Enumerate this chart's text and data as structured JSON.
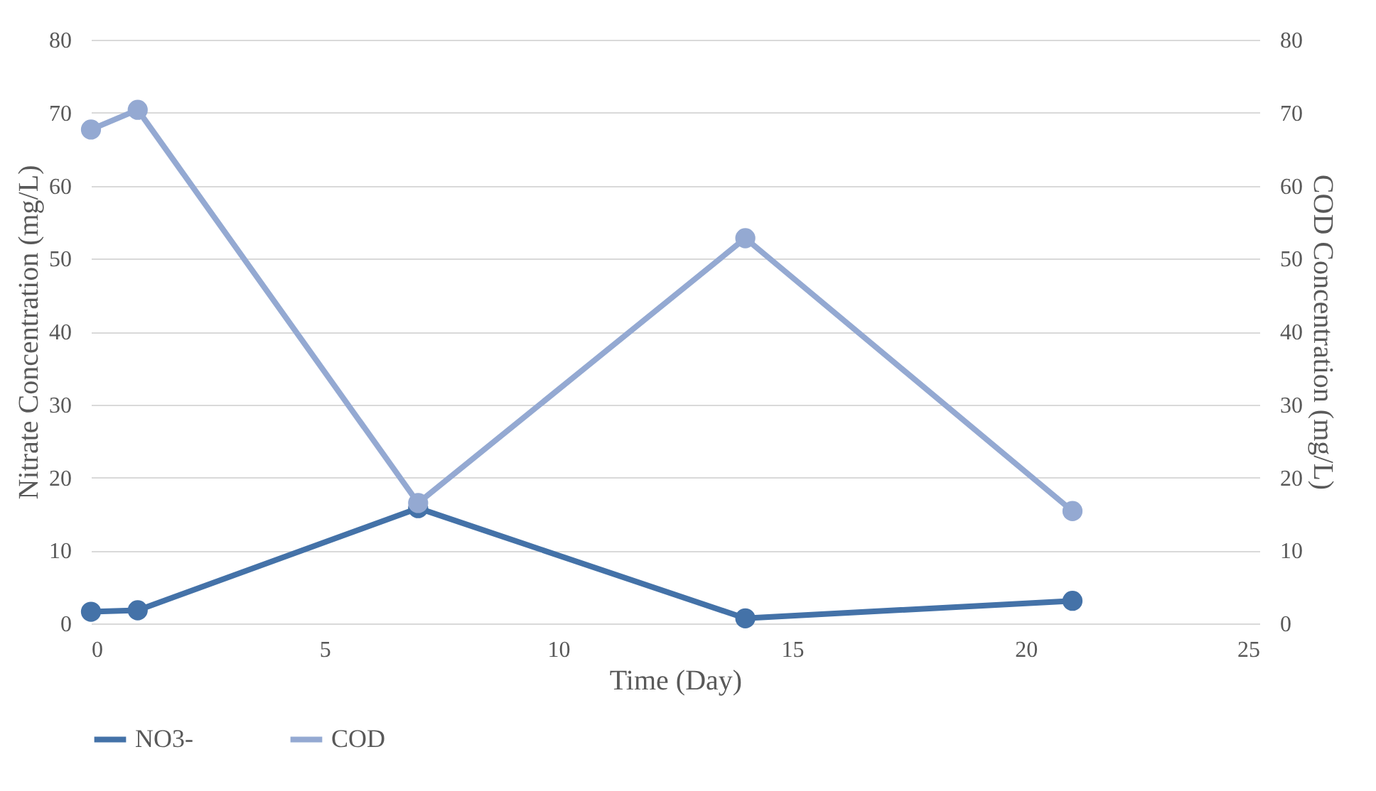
{
  "chart_data": {
    "type": "line",
    "xlabel": "Time (Day)",
    "ylabel": "Nitrate Concentration (mg/L)",
    "y2label": "COD Concentration (mg/L)",
    "x": [
      0,
      1,
      7,
      14,
      21
    ],
    "series": [
      {
        "name": "NO3-",
        "color": "#4472a8",
        "values": [
          1.6,
          1.8,
          15.8,
          0.7,
          3.1
        ]
      },
      {
        "name": "COD",
        "color": "#94a9d2",
        "values": [
          67.7,
          70.4,
          16.5,
          52.8,
          15.4
        ],
        "axis": "y2"
      }
    ],
    "xlim": [
      0,
      25
    ],
    "xticks": [
      0,
      5,
      10,
      15,
      20,
      25
    ],
    "ylim": [
      0,
      80
    ],
    "yticks": [
      0,
      10,
      20,
      30,
      40,
      50,
      60,
      70,
      80
    ],
    "y2lim": [
      0,
      80
    ],
    "y2ticks": [
      0,
      10,
      20,
      30,
      40,
      50,
      60,
      70,
      80
    ],
    "grid": "y",
    "legend": "bottom",
    "marker": "circle",
    "line_style": "solid"
  }
}
